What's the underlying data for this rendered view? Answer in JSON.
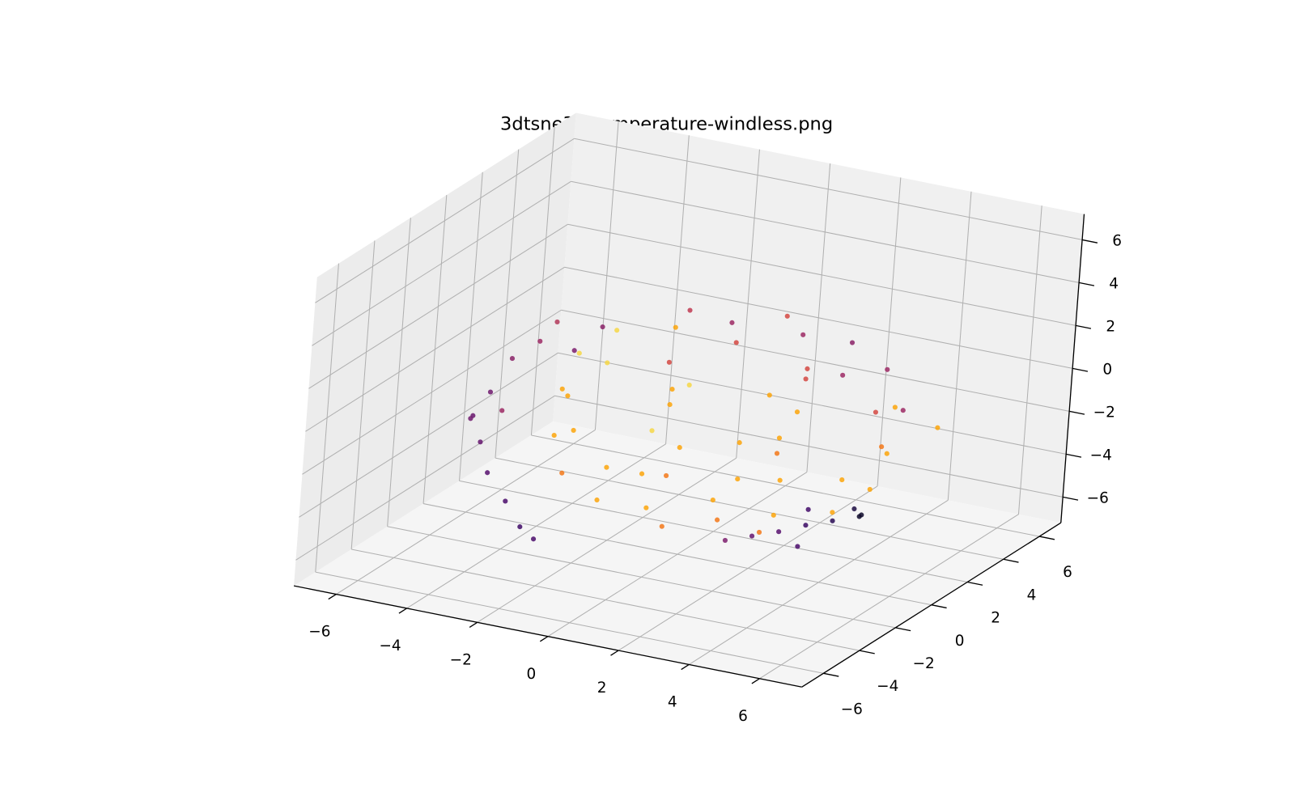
{
  "chart_data": {
    "type": "scatter3d",
    "title": "3dtsne30-temperature-windless.png",
    "xlim": [
      -7.2,
      7.2
    ],
    "ylim": [
      -7.2,
      7.2
    ],
    "zlim": [
      -7.2,
      7.2
    ],
    "xticks": [
      {
        "value": -6,
        "label": "−6"
      },
      {
        "value": -4,
        "label": "−4"
      },
      {
        "value": -2,
        "label": "−2"
      },
      0,
      2,
      4,
      6
    ],
    "yticks": [
      {
        "value": -6,
        "label": "−6"
      },
      {
        "value": -4,
        "label": "−4"
      },
      {
        "value": -2,
        "label": "−2"
      },
      0,
      2,
      4,
      6
    ],
    "zticks": [
      {
        "value": -6,
        "label": "−6"
      },
      {
        "value": -4,
        "label": "−4"
      },
      {
        "value": -2,
        "label": "−2"
      },
      0,
      2,
      4,
      6
    ],
    "grid": true,
    "x": [
      0.8,
      4.0,
      -2.4,
      0.8,
      0.8,
      3.1,
      -1.5,
      3.1,
      -1.5,
      5.4,
      -3.8,
      0.8,
      0.8,
      4.0,
      -2.4,
      4.0,
      -2.4,
      4.9,
      -1.0,
      2.6,
      4.0,
      -2.4,
      0.8,
      0.8,
      3.1,
      -1.5,
      3.1,
      -1.5,
      0.8,
      5.0,
      3.8,
      0.8,
      -2.2,
      -3.4,
      -2.2,
      0.8,
      3.8,
      5.0,
      3.8,
      0.8,
      -2.2,
      -3.4,
      -2.2,
      0.8,
      3.8,
      1.5,
      -0.5,
      2.0,
      0.0,
      2.5,
      7.0,
      -6.0,
      -5.8,
      -5.5,
      -5.0,
      -4.8,
      -5.5,
      -5.0,
      -4.2,
      -3.5,
      -3.0,
      -6.3,
      -4.5,
      -5.2,
      -4.0,
      5.0,
      4.7,
      4.5,
      4.0,
      3.5,
      3.0,
      2.5,
      3.8,
      5.2,
      4.2
    ],
    "y": [
      0.5,
      0.5,
      0.5,
      3.7,
      -2.7,
      2.8,
      2.8,
      -1.8,
      -1.8,
      0.5,
      0.5,
      5.1,
      -4.1,
      3.7,
      3.7,
      -2.7,
      -2.7,
      2.3,
      4.6,
      -3.6,
      0.5,
      0.5,
      3.7,
      -2.7,
      2.8,
      2.8,
      -1.8,
      -1.8,
      0.5,
      0.5,
      3.5,
      4.7,
      3.5,
      0.5,
      -2.5,
      -3.7,
      -2.5,
      0.5,
      3.5,
      4.7,
      3.5,
      0.5,
      -2.5,
      -3.7,
      -2.5,
      0.0,
      1.0,
      -1.0,
      -1.0,
      1.5,
      0.0,
      0.0,
      0.5,
      1.0,
      1.5,
      2.0,
      -0.5,
      -1.0,
      -1.5,
      -2.0,
      -2.2,
      0.5,
      2.5,
      0.0,
      3.0,
      0.0,
      0.3,
      -0.5,
      -1.0,
      -1.5,
      -2.0,
      -2.5,
      -0.5,
      -0.3,
      -1.8
    ],
    "z": [
      3.6,
      2.2,
      2.2,
      2.2,
      2.2,
      2.2,
      2.2,
      2.2,
      2.2,
      -1.0,
      -1.0,
      -1.0,
      -1.0,
      -1.0,
      -1.0,
      -1.0,
      -1.0,
      -0.1,
      -0.1,
      -1.9,
      -4.2,
      -4.2,
      -4.2,
      -4.2,
      -4.2,
      -4.2,
      -4.2,
      -4.2,
      -5.6,
      0.8,
      0.8,
      0.8,
      0.8,
      0.8,
      0.8,
      0.8,
      0.8,
      -2.8,
      -2.8,
      -2.8,
      -2.8,
      -2.8,
      -2.8,
      -2.8,
      -2.8,
      -1.5,
      0.0,
      -2.5,
      -3.0,
      1.0,
      1.0,
      -2.7,
      -1.8,
      -0.4,
      0.3,
      1.0,
      -3.5,
      -4.5,
      -5.3,
      -6.0,
      -6.3,
      -3.2,
      -0.5,
      -2.2,
      0.5,
      -3.8,
      -3.7,
      -3.9,
      -4.0,
      -4.2,
      -4.3,
      -4.4,
      -3.6,
      -3.5,
      -4.5
    ],
    "colors": [
      "#9c2964",
      "#9c2964",
      "#f6d746",
      "#d44842",
      "#fca50a",
      "#8a2267",
      "#c03a51",
      "#fca50a",
      "#f6d746",
      "#fca50a",
      "#fca50a",
      "#d44842",
      "#fca50a",
      "#fca50a",
      "#d44842",
      "#fca50a",
      "#fca50a",
      "#9c2964",
      "#d44842",
      "#fca50a",
      "#fca50a",
      "#fca50a",
      "#f37819",
      "#f37819",
      "#fca50a",
      "#fca50a",
      "#f37819",
      "#fca50a",
      "#f37819",
      "#d44842",
      "#9c2964",
      "#9c2964",
      "#fca50a",
      "#f6d746",
      "#fca50a",
      "#f6d746",
      "#fca50a",
      "#fca50a",
      "#f37819",
      "#fca50a",
      "#fca50a",
      "#fca50a",
      "#f37819",
      "#fca50a",
      "#fca50a",
      "#fca50a",
      "#f6d746",
      "#fca50a",
      "#f37819",
      "#d44842",
      "#fca50a",
      "#6a176e",
      "#701a6e",
      "#8a2267",
      "#9c2964",
      "#b33a5a",
      "#65156e",
      "#57106e",
      "#4a0c6b",
      "#3e0966",
      "#4a0c6b",
      "#701a6e",
      "#7c1d6d",
      "#9c2964",
      "#8a2267",
      "#0d0829",
      "#1b0c41",
      "#280b54",
      "#3a0963",
      "#57106e",
      "#65156e",
      "#7c1d6d",
      "#420a68",
      "#0d0829",
      "#4a0c6b"
    ]
  }
}
